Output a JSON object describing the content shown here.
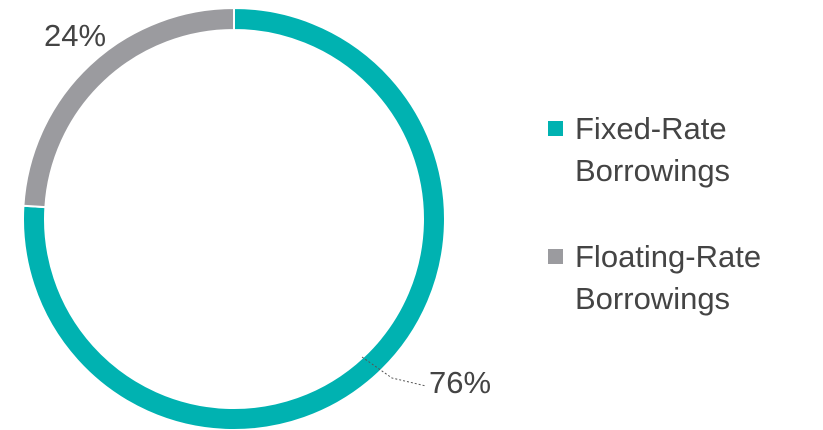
{
  "chart_data": {
    "type": "donut",
    "categories": [
      "Fixed-Rate Borrowings",
      "Floating-Rate Borrowings"
    ],
    "values": [
      76,
      24
    ],
    "value_labels": [
      "76%",
      "24%"
    ],
    "colors": [
      "#00b2b1",
      "#9b9b9f"
    ],
    "legend": "right"
  }
}
